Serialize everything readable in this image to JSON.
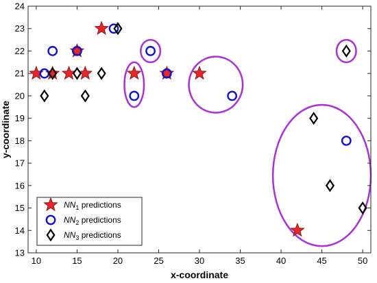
{
  "chart_data": {
    "type": "scatter",
    "title": "",
    "xlabel": "x-coordinate",
    "ylabel": "y-coordinate",
    "xlim": [
      9,
      51
    ],
    "ylim": [
      13,
      24
    ],
    "xticks": [
      10,
      15,
      20,
      25,
      30,
      35,
      40,
      45,
      50
    ],
    "yticks": [
      13,
      14,
      15,
      16,
      17,
      18,
      19,
      20,
      21,
      22,
      23,
      24
    ],
    "grid": false,
    "legend_position": "bottom-left",
    "series": [
      {
        "name": "NN1 predictions",
        "name_base": "NN",
        "name_sub": "1",
        "name_rest": " predictions",
        "marker": "star",
        "color": "#e8262a",
        "edge": "#8b1a1a",
        "x": [
          10,
          12,
          14,
          15,
          16,
          18,
          22,
          26,
          30,
          42
        ],
        "y": [
          21,
          21,
          21,
          22,
          21,
          23,
          21,
          21,
          21,
          14
        ]
      },
      {
        "name": "NN2 predictions",
        "name_base": "NN",
        "name_sub": "2",
        "name_rest": " predictions",
        "marker": "circle",
        "color": "#1010d0",
        "x": [
          11,
          12,
          15,
          19.5,
          22,
          24,
          26,
          34,
          48
        ],
        "y": [
          21,
          22,
          22,
          23,
          20,
          22,
          21,
          20,
          18
        ]
      },
      {
        "name": "NN3 predictions",
        "name_base": "NN",
        "name_sub": "3",
        "name_rest": " predictions",
        "marker": "diamond",
        "color": "#000000",
        "x": [
          11,
          12,
          15,
          16,
          18,
          20,
          44,
          46,
          48,
          50
        ],
        "y": [
          20,
          21,
          21,
          20,
          21,
          23,
          19,
          16,
          22,
          15
        ]
      }
    ],
    "highlight_ellipses": {
      "color": "#a832d6",
      "items": [
        {
          "cx": 22,
          "cy": 20.5,
          "rx": 1.2,
          "ry": 1.0
        },
        {
          "cx": 24,
          "cy": 22,
          "rx": 1.2,
          "ry": 0.5
        },
        {
          "cx": 32,
          "cy": 20.5,
          "rx": 3.3,
          "ry": 1.25
        },
        {
          "cx": 48,
          "cy": 22,
          "rx": 1.2,
          "ry": 0.5
        },
        {
          "cx": 45,
          "cy": 16.45,
          "rx": 6.0,
          "ry": 3.15
        }
      ]
    }
  }
}
